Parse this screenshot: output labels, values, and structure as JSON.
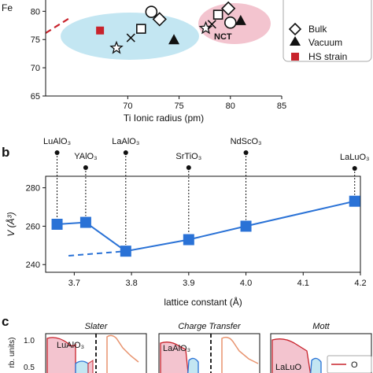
{
  "chart_data": [
    {
      "panel": "a",
      "type": "scatter",
      "ylabel": "Fe",
      "xlabel": "Ti Ionic radius (pm)",
      "xlim": [
        62,
        85
      ],
      "ylim": [
        65,
        82
      ],
      "xticks": [
        "70",
        "75",
        "80",
        "85"
      ],
      "yticks": [
        "65",
        "70",
        "75",
        "80"
      ],
      "region_labels": [
        "NCT"
      ],
      "legend": {
        "placement": "right",
        "entries": [
          "Bulk",
          "Vacuum",
          "HS strain"
        ]
      },
      "series": [
        {
          "name": "Bulk",
          "marker": "diamond",
          "points": [
            [
              73.1,
              78.6
            ],
            [
              79.8,
              80.5
            ]
          ]
        },
        {
          "name": "Vacuum",
          "marker": "triangle",
          "points": [
            [
              74.5,
              75.0
            ],
            [
              81.0,
              78.4
            ]
          ]
        },
        {
          "name": "HS strain",
          "marker": "square-filled",
          "color": "#c8232c",
          "points": [
            [
              67.3,
              76.6
            ]
          ]
        },
        {
          "marker": "circle",
          "points": [
            [
              72.3,
              79.9
            ],
            [
              80.0,
              78.0
            ]
          ]
        },
        {
          "marker": "square",
          "points": [
            [
              71.3,
              76.9
            ],
            [
              78.8,
              79.4
            ]
          ]
        },
        {
          "marker": "star",
          "points": [
            [
              68.9,
              73.5
            ],
            [
              77.6,
              77.0
            ]
          ]
        },
        {
          "marker": "x",
          "points": [
            [
              70.3,
              75.3
            ],
            [
              78.2,
              77.7
            ]
          ]
        }
      ]
    },
    {
      "panel": "b",
      "type": "line",
      "xlabel": "lattice constant (Å)",
      "ylabel": "V (Å³)",
      "xlim": [
        3.65,
        4.2
      ],
      "ylim": [
        236,
        286
      ],
      "xticks": [
        "3.7",
        "3.8",
        "3.9",
        "4.0",
        "4.1",
        "4.2"
      ],
      "yticks": [
        "240",
        "260",
        "280"
      ],
      "color": "#2a72d6",
      "points": [
        {
          "x": 3.67,
          "y": 261.0,
          "label": "LuAlO₃"
        },
        {
          "x": 3.72,
          "y": 262.0,
          "label": "YAlO₃"
        },
        {
          "x": 3.79,
          "y": 247.0,
          "label": "LaAlO₃"
        },
        {
          "x": 3.9,
          "y": 253.0,
          "label": "SrTiO₃"
        },
        {
          "x": 4.0,
          "y": 260.0,
          "label": "NdScO₃"
        },
        {
          "x": 4.19,
          "y": 273.0,
          "label": "LaLuO₃"
        }
      ],
      "dashed_extension": [
        [
          3.69,
          244.6
        ],
        [
          3.79,
          247.0
        ]
      ]
    },
    {
      "panel": "c",
      "type": "area",
      "ylabel": "rb. units)",
      "ytick": "1.0",
      "ytick2": "0.5",
      "subplots": [
        {
          "title": "Slater",
          "compound": "LuAlO₃"
        },
        {
          "title": "Charge Transfer",
          "compound": "LaAlO₃"
        },
        {
          "title": "Mott",
          "compound": "LaLuO",
          "legend": "O"
        }
      ]
    }
  ],
  "panel_letters": {
    "b": "b",
    "c": "c"
  }
}
